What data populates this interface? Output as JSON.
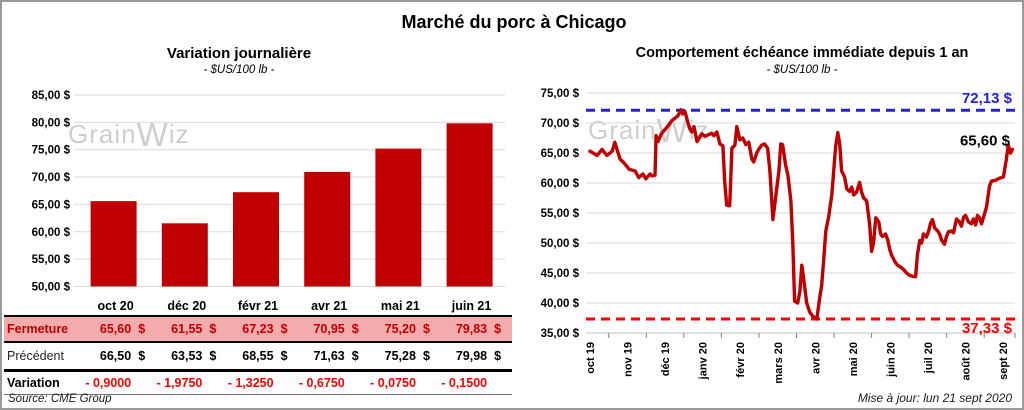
{
  "window": {
    "title": "Marché du porc à Chicago",
    "source_note": "Source: CME Group",
    "update_note": "Mise à jour: lun 21 sept 2020",
    "watermark": {
      "part1": "Grain",
      "part2": "W",
      "part3": "iz"
    }
  },
  "colors": {
    "dark_red": "#C00000",
    "bright_red": "#FF0000",
    "blue": "#2323CC",
    "pink_row": "#F4ABAB",
    "grid": "#D9D9D9",
    "axis": "#BFBFBF",
    "tick": "#808080",
    "watermark_gray": "#C6C6C6",
    "border_gray": "#999999"
  },
  "chart_data": [
    {
      "type": "bar",
      "title": "Variation  journalière",
      "subtitle": "- $US/100 lb -",
      "categories": [
        "oct 20",
        "déc 20",
        "févr 21",
        "avr 21",
        "mai 21",
        "juin 21"
      ],
      "values": [
        65.6,
        61.55,
        67.23,
        70.95,
        75.2,
        79.83
      ],
      "ylim": [
        50,
        85
      ],
      "ytick_step": 5,
      "ytick_labels": [
        "85,00 $",
        "80,00 $",
        "75,00 $",
        "70,00 $",
        "65,00 $",
        "60,00 $",
        "55,00 $",
        "50,00 $"
      ],
      "bar_color": "#C00000",
      "grid": true
    },
    {
      "type": "line",
      "title": "Comportement  échéance immédiate depuis 1 an",
      "subtitle": "- $US/100 lb -",
      "x_categories": [
        "oct 19",
        "nov 19",
        "déc 19",
        "janv 20",
        "févr 20",
        "mars 20",
        "avr 20",
        "mai 20",
        "juin 20",
        "juil 20",
        "août 20",
        "sept 20"
      ],
      "ylim": [
        35,
        75
      ],
      "ytick_step": 5,
      "ytick_labels": [
        "75,00 $",
        "70,00 $",
        "65,00 $",
        "60,00 $",
        "55,00 $",
        "50,00 $",
        "45,00 $",
        "40,00 $",
        "35,00 $"
      ],
      "line_color": "#C00000",
      "hlines": [
        {
          "value": 72.13,
          "label": "72,13 $",
          "color": "#2323CC",
          "style": "dashed",
          "label_side": "above"
        },
        {
          "value": 37.33,
          "label": "37,33 $",
          "color": "#FF0000",
          "style": "dashed",
          "label_side": "below"
        }
      ],
      "end_label": {
        "value": 65.6,
        "label": "65,60 $",
        "color": "#000000"
      },
      "points": [
        [
          0,
          65.3
        ],
        [
          0.19,
          64.6
        ],
        [
          0.32,
          65.6
        ],
        [
          0.45,
          64.6
        ],
        [
          0.59,
          65.3
        ],
        [
          0.66,
          66.8
        ],
        [
          0.8,
          64
        ],
        [
          0.9,
          63.4
        ],
        [
          1.04,
          62.3
        ],
        [
          1.2,
          62
        ],
        [
          1.3,
          60.9
        ],
        [
          1.41,
          61.5
        ],
        [
          1.49,
          60.7
        ],
        [
          1.6,
          61.5
        ],
        [
          1.65,
          61.2
        ],
        [
          1.73,
          61.3
        ],
        [
          1.76,
          67.9
        ],
        [
          1.81,
          66.9
        ],
        [
          1.91,
          68.3
        ],
        [
          2.05,
          69.3
        ],
        [
          2.18,
          70.4
        ],
        [
          2.26,
          70.8
        ],
        [
          2.34,
          71.2
        ],
        [
          2.42,
          72.2
        ],
        [
          2.47,
          71.5
        ],
        [
          2.53,
          71.9
        ],
        [
          2.61,
          70
        ],
        [
          2.66,
          69
        ],
        [
          2.71,
          68.5
        ],
        [
          2.77,
          69.4
        ],
        [
          2.85,
          66.9
        ],
        [
          2.93,
          67.7
        ],
        [
          2.98,
          68.2
        ],
        [
          3.06,
          67.8
        ],
        [
          3.14,
          68
        ],
        [
          3.24,
          68.3
        ],
        [
          3.3,
          67.9
        ],
        [
          3.38,
          68.5
        ],
        [
          3.46,
          66.5
        ],
        [
          3.54,
          66.2
        ],
        [
          3.59,
          60
        ],
        [
          3.64,
          56.3
        ],
        [
          3.72,
          56.2
        ],
        [
          3.78,
          65.8
        ],
        [
          3.86,
          66.3
        ],
        [
          3.91,
          69.4
        ],
        [
          3.99,
          67.2
        ],
        [
          4.07,
          67.5
        ],
        [
          4.15,
          66.4
        ],
        [
          4.23,
          66.8
        ],
        [
          4.31,
          64
        ],
        [
          4.36,
          63.5
        ],
        [
          4.44,
          65
        ],
        [
          4.49,
          65.6
        ],
        [
          4.57,
          66.3
        ],
        [
          4.65,
          66.5
        ],
        [
          4.73,
          65.8
        ],
        [
          4.79,
          62
        ],
        [
          4.87,
          53.9
        ],
        [
          4.95,
          58
        ],
        [
          5.03,
          62
        ],
        [
          5.08,
          66.5
        ],
        [
          5.13,
          66.4
        ],
        [
          5.21,
          63
        ],
        [
          5.27,
          61.3
        ],
        [
          5.35,
          57
        ],
        [
          5.4,
          50
        ],
        [
          5.45,
          40.3
        ],
        [
          5.53,
          40
        ],
        [
          5.59,
          42
        ],
        [
          5.64,
          46.3
        ],
        [
          5.69,
          44
        ],
        [
          5.77,
          40
        ],
        [
          5.85,
          38.5
        ],
        [
          5.93,
          37.8
        ],
        [
          6.04,
          37.33
        ],
        [
          6.12,
          41
        ],
        [
          6.17,
          43
        ],
        [
          6.22,
          47
        ],
        [
          6.28,
          52
        ],
        [
          6.36,
          54.5
        ],
        [
          6.38,
          55.5
        ],
        [
          6.44,
          58
        ],
        [
          6.49,
          62
        ],
        [
          6.54,
          66
        ],
        [
          6.6,
          68.4
        ],
        [
          6.65,
          66.5
        ],
        [
          6.7,
          62
        ],
        [
          6.78,
          61
        ],
        [
          6.84,
          59
        ],
        [
          6.91,
          58.6
        ],
        [
          6.97,
          59.3
        ],
        [
          7.02,
          58
        ],
        [
          7.1,
          58.5
        ],
        [
          7.18,
          60.1
        ],
        [
          7.23,
          58.5
        ],
        [
          7.29,
          57.5
        ],
        [
          7.37,
          57
        ],
        [
          7.45,
          53
        ],
        [
          7.5,
          48.6
        ],
        [
          7.55,
          50
        ],
        [
          7.61,
          54.2
        ],
        [
          7.69,
          53.5
        ],
        [
          7.74,
          51.5
        ],
        [
          7.79,
          51.1
        ],
        [
          7.87,
          51.5
        ],
        [
          7.93,
          50.5
        ],
        [
          7.98,
          49
        ],
        [
          8.03,
          48
        ],
        [
          8.11,
          47
        ],
        [
          8.19,
          46.3
        ],
        [
          8.27,
          46
        ],
        [
          8.35,
          45.6
        ],
        [
          8.43,
          45
        ],
        [
          8.51,
          44.6
        ],
        [
          8.62,
          44.4
        ],
        [
          8.67,
          44.4
        ],
        [
          8.72,
          48
        ],
        [
          8.78,
          50.4
        ],
        [
          8.83,
          50
        ],
        [
          8.88,
          51.5
        ],
        [
          8.96,
          51
        ],
        [
          9.02,
          52
        ],
        [
          9.07,
          53.3
        ],
        [
          9.12,
          53.9
        ],
        [
          9.18,
          52.5
        ],
        [
          9.26,
          52
        ],
        [
          9.31,
          51.5
        ],
        [
          9.36,
          50.5
        ],
        [
          9.44,
          49.8
        ],
        [
          9.49,
          51
        ],
        [
          9.55,
          51.9
        ],
        [
          9.63,
          52
        ],
        [
          9.68,
          51.7
        ],
        [
          9.76,
          54
        ],
        [
          9.84,
          53.5
        ],
        [
          9.89,
          52.8
        ],
        [
          9.95,
          54.3
        ],
        [
          10,
          54.6
        ],
        [
          10.08,
          53.5
        ],
        [
          10.16,
          53.2
        ],
        [
          10.21,
          54
        ],
        [
          10.27,
          53
        ],
        [
          10.32,
          54.6
        ],
        [
          10.37,
          54.2
        ],
        [
          10.43,
          53.2
        ],
        [
          10.56,
          56
        ],
        [
          10.64,
          59.5
        ],
        [
          10.69,
          60.3
        ],
        [
          10.82,
          60.5
        ],
        [
          10.9,
          60.8
        ],
        [
          11.01,
          61
        ],
        [
          11.09,
          64
        ],
        [
          11.14,
          66.3
        ],
        [
          11.2,
          65
        ],
        [
          11.25,
          65.6
        ]
      ]
    }
  ],
  "table": {
    "columns": [
      "oct 20",
      "déc 20",
      "févr 21",
      "avr 21",
      "mai 21",
      "juin 21"
    ],
    "rows": [
      {
        "style": "fermeture",
        "label": "Fermeture",
        "values": [
          "65,60 $",
          "61,55 $",
          "67,23 $",
          "70,95 $",
          "75,20 $",
          "79,83 $"
        ]
      },
      {
        "style": "precedent",
        "label": "Précédent",
        "values": [
          "66,50 $",
          "63,53 $",
          "68,55 $",
          "71,63 $",
          "75,28 $",
          "79,98 $"
        ]
      },
      {
        "style": "variation",
        "label": "Variation",
        "values": [
          "- 0,9000",
          "- 1,9750",
          "- 1,3250",
          "- 0,6750",
          "- 0,0750",
          "- 0,1500"
        ]
      }
    ]
  }
}
